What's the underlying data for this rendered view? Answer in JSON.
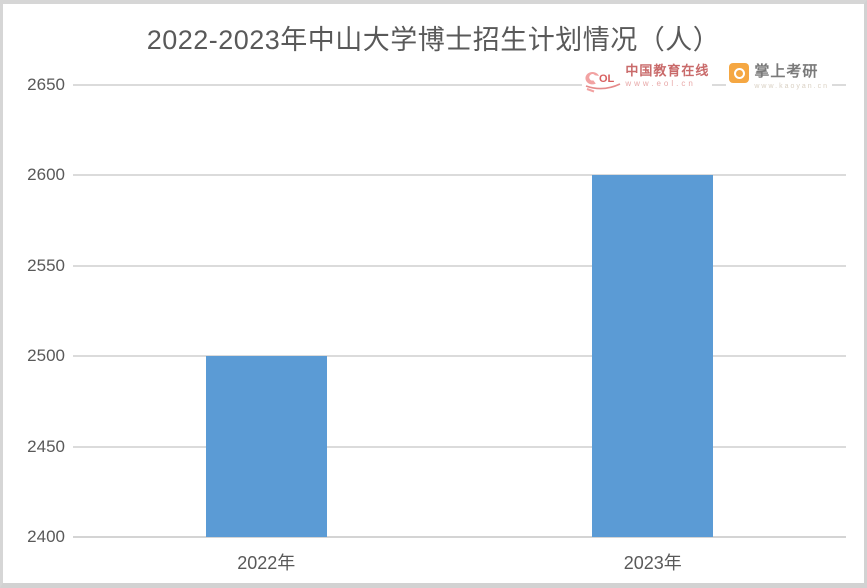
{
  "title": "2022-2023年中山大学博士招生计划情况（人）",
  "watermarks": {
    "eol": {
      "name_text": "中国教育在线",
      "url_text": "www.eol.cn",
      "brand_color": "#d86060",
      "light_color": "#f2a2a2"
    },
    "kaoyan": {
      "name_text": "掌上考研",
      "url_text": "www.kaoyan.cn",
      "icon_color": "#f5a742"
    }
  },
  "chart_data": {
    "type": "bar",
    "categories": [
      "2022年",
      "2023年"
    ],
    "values": [
      2500,
      2600
    ],
    "title": "2022-2023年中山大学博士招生计划情况（人）",
    "xlabel": "",
    "ylabel": "",
    "ylim": [
      2400,
      2650
    ],
    "yticks": [
      2400,
      2450,
      2500,
      2550,
      2600,
      2650
    ],
    "grid": true,
    "legend": false,
    "bar_color": "#5B9BD5",
    "gridline_color": "#dbdbdb",
    "axis_color": "#d4d4d4",
    "label_color": "#595959"
  }
}
